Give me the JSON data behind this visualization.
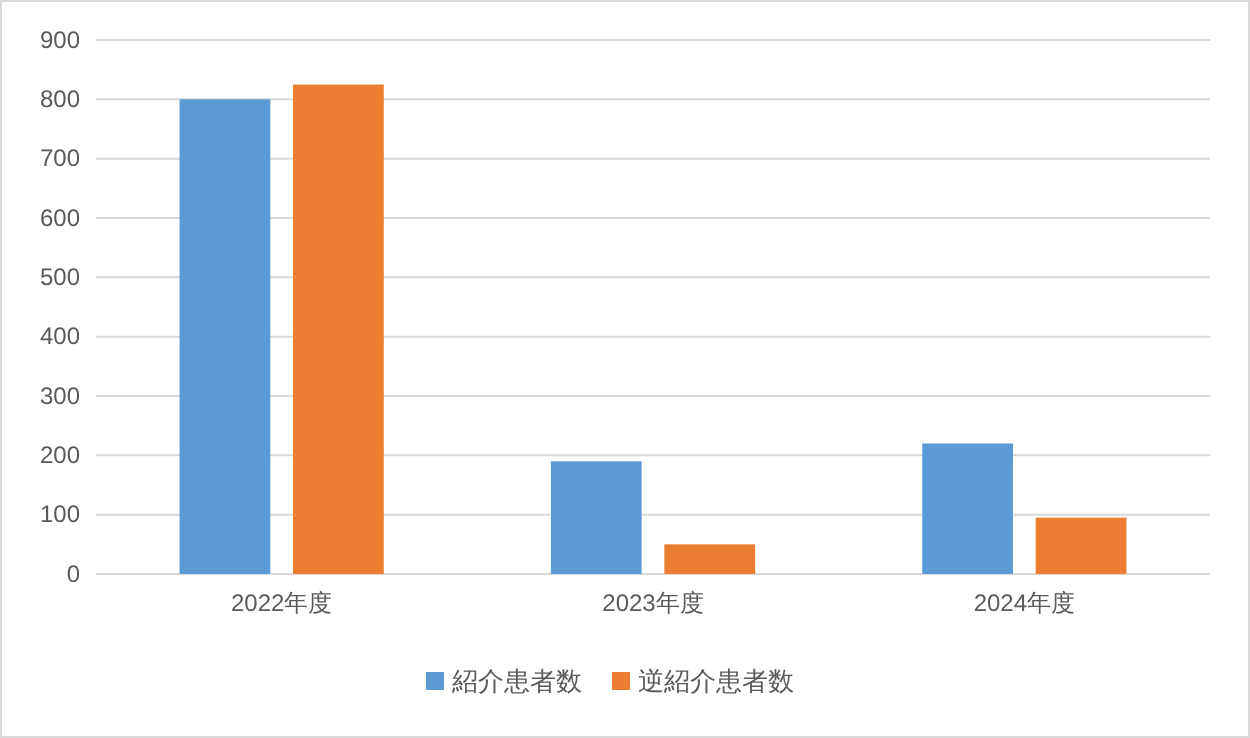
{
  "chart_data": {
    "type": "bar",
    "categories": [
      "2022年度",
      "2023年度",
      "2024年度"
    ],
    "series": [
      {
        "name": "紹介患者数",
        "color": "#5b9bd5",
        "values": [
          800,
          190,
          220
        ]
      },
      {
        "name": "逆紹介患者数",
        "color": "#ed7d31",
        "values": [
          825,
          50,
          95
        ]
      }
    ],
    "ylim": [
      0,
      900
    ],
    "yticks": [
      0,
      100,
      200,
      300,
      400,
      500,
      600,
      700,
      800,
      900
    ],
    "grid": "y",
    "legend": "bottom"
  }
}
